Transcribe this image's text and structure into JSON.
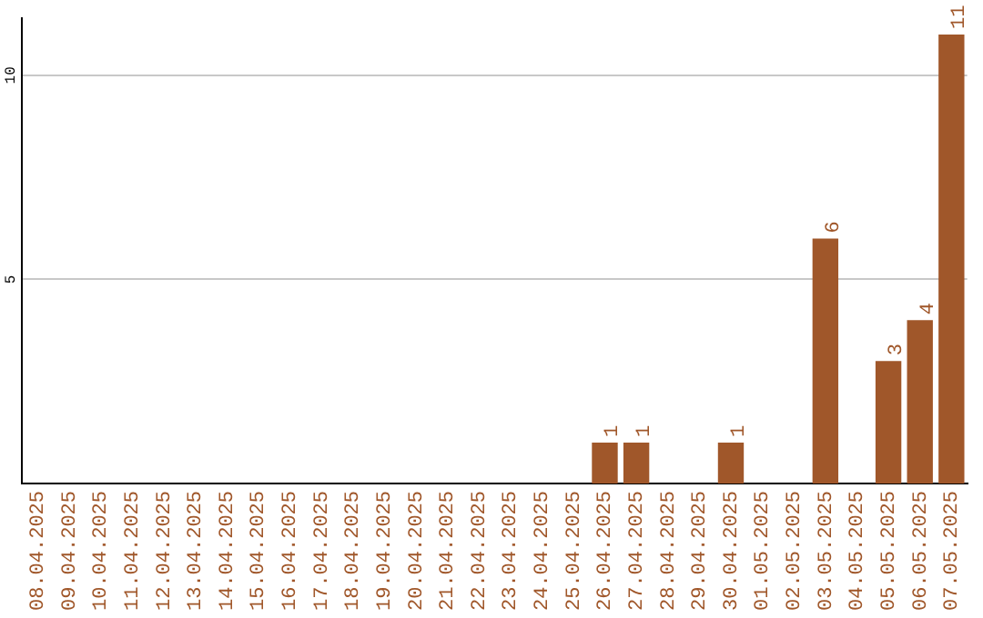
{
  "chart_data": {
    "type": "bar",
    "categories": [
      "08.04.2025",
      "09.04.2025",
      "10.04.2025",
      "11.04.2025",
      "12.04.2025",
      "13.04.2025",
      "14.04.2025",
      "15.04.2025",
      "16.04.2025",
      "17.04.2025",
      "18.04.2025",
      "19.04.2025",
      "20.04.2025",
      "21.04.2025",
      "22.04.2025",
      "23.04.2025",
      "24.04.2025",
      "25.04.2025",
      "26.04.2025",
      "27.04.2025",
      "28.04.2025",
      "29.04.2025",
      "30.04.2025",
      "01.05.2025",
      "02.05.2025",
      "03.05.2025",
      "04.05.2025",
      "05.05.2025",
      "06.05.2025",
      "07.05.2025"
    ],
    "values": [
      0,
      0,
      0,
      0,
      0,
      0,
      0,
      0,
      0,
      0,
      0,
      0,
      0,
      0,
      0,
      0,
      0,
      0,
      1,
      1,
      0,
      0,
      1,
      0,
      0,
      6,
      0,
      3,
      4,
      11
    ],
    "value_labels": [
      null,
      null,
      null,
      null,
      null,
      null,
      null,
      null,
      null,
      null,
      null,
      null,
      null,
      null,
      null,
      null,
      null,
      null,
      "1",
      "1",
      null,
      null,
      "1",
      null,
      null,
      "6",
      null,
      "3",
      "4",
      "11"
    ],
    "color": "#a0572a",
    "ylim": [
      0,
      11.4
    ],
    "yticks": [
      5,
      10
    ],
    "grid": "y",
    "legend": false
  }
}
